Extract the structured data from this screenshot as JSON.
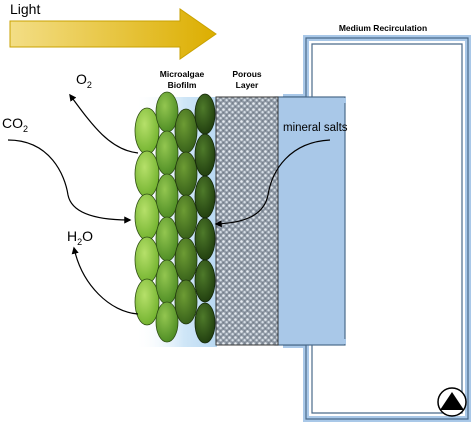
{
  "labels": {
    "light": "Light",
    "o2_base": "O",
    "o2_sub": "2",
    "co2_base": "CO",
    "co2_sub": "2",
    "h2o_base": "H",
    "h2o_sub": "2",
    "h2o_tail": "O",
    "biofilm_line1": "Microalgae",
    "biofilm_line2": "Biofilm",
    "porous_line1": "Porous",
    "porous_line2": "Layer",
    "medium_recirculation": "Medium Recirculation",
    "mineral_salts": "mineral salts"
  },
  "colors": {
    "light_arrow_start": "#f5e08a",
    "light_arrow_end": "#e0b200",
    "cell_light_green": "#86c840",
    "cell_mid_green": "#5fa030",
    "cell_dark_green": "#2f5a18",
    "glow_blue": "#cfe6f7",
    "porous_fill": "#9aa3ad",
    "medium_fill": "#a9c8e8",
    "medium_stroke": "#4a6a8a",
    "pump_fill": "#000000"
  },
  "icons": {
    "pump": "pump-triangle-icon"
  }
}
